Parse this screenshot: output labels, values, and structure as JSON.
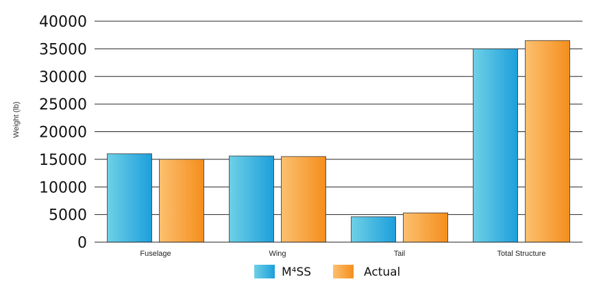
{
  "chart_data": {
    "type": "bar",
    "title": "",
    "xlabel": "",
    "ylabel": "Weight (lb)",
    "ylim": [
      0,
      40000
    ],
    "yticks": [
      "0",
      "5000",
      "10000",
      "15000",
      "20000",
      "25000",
      "30000",
      "35000",
      "40000"
    ],
    "grid": true,
    "legend_position": "bottom-center",
    "categories": [
      "Fuselage",
      "Wing",
      "Tail",
      "Total Structure"
    ],
    "series": [
      {
        "name": "M⁴SS",
        "color": "#29a8e0",
        "values": [
          16000,
          15600,
          4600,
          35000
        ]
      },
      {
        "name": "Actual",
        "color": "#f7941d",
        "values": [
          15000,
          15500,
          5300,
          36500
        ]
      }
    ]
  }
}
